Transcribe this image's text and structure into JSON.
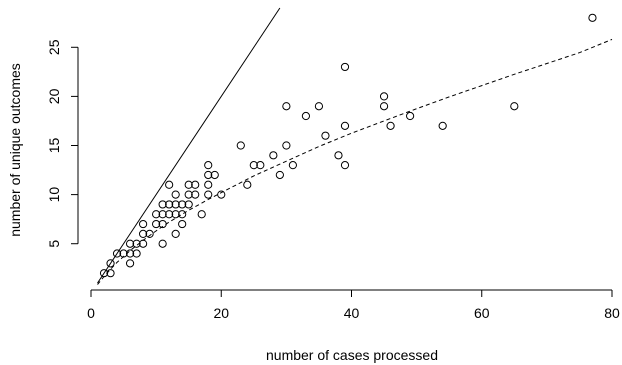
{
  "chart_data": {
    "type": "scatter",
    "title": "",
    "xlabel": "number of cases processed",
    "ylabel": "number of unique outcomes",
    "xlim": [
      0,
      80
    ],
    "ylim": [
      1,
      29
    ],
    "x_ticks": [
      0,
      20,
      40,
      60,
      80
    ],
    "y_ticks": [
      5,
      10,
      15,
      20,
      25
    ],
    "grid": false,
    "legend": "none",
    "colors": {
      "points": "#000000",
      "lines": "#000000",
      "background": "#ffffff"
    },
    "points": [
      [
        2,
        2
      ],
      [
        3,
        2
      ],
      [
        3,
        3
      ],
      [
        4,
        4
      ],
      [
        5,
        4
      ],
      [
        6,
        3
      ],
      [
        6,
        4
      ],
      [
        6,
        5
      ],
      [
        7,
        4
      ],
      [
        7,
        5
      ],
      [
        8,
        5
      ],
      [
        8,
        6
      ],
      [
        8,
        7
      ],
      [
        9,
        6
      ],
      [
        10,
        7
      ],
      [
        10,
        8
      ],
      [
        11,
        5
      ],
      [
        11,
        7
      ],
      [
        11,
        8
      ],
      [
        11,
        9
      ],
      [
        12,
        8
      ],
      [
        12,
        9
      ],
      [
        12,
        11
      ],
      [
        13,
        6
      ],
      [
        13,
        8
      ],
      [
        13,
        9
      ],
      [
        13,
        10
      ],
      [
        14,
        7
      ],
      [
        14,
        8
      ],
      [
        14,
        9
      ],
      [
        15,
        9
      ],
      [
        15,
        10
      ],
      [
        15,
        11
      ],
      [
        16,
        10
      ],
      [
        16,
        11
      ],
      [
        17,
        8
      ],
      [
        18,
        10
      ],
      [
        18,
        11
      ],
      [
        18,
        12
      ],
      [
        18,
        13
      ],
      [
        19,
        12
      ],
      [
        20,
        10
      ],
      [
        23,
        15
      ],
      [
        24,
        11
      ],
      [
        25,
        13
      ],
      [
        26,
        13
      ],
      [
        28,
        14
      ],
      [
        29,
        12
      ],
      [
        30,
        15
      ],
      [
        30,
        19
      ],
      [
        31,
        13
      ],
      [
        33,
        18
      ],
      [
        35,
        19
      ],
      [
        36,
        16
      ],
      [
        38,
        14
      ],
      [
        39,
        13
      ],
      [
        39,
        17
      ],
      [
        39,
        23
      ],
      [
        45,
        19
      ],
      [
        45,
        20
      ],
      [
        46,
        17
      ],
      [
        49,
        18
      ],
      [
        54,
        17
      ],
      [
        65,
        19
      ],
      [
        77,
        28
      ]
    ],
    "identity_line": {
      "style": "solid",
      "from": [
        1,
        1
      ],
      "to": [
        29,
        29
      ]
    },
    "fitted_curve": {
      "style": "dashed",
      "x": [
        1,
        2,
        3,
        4,
        6,
        8,
        10,
        12,
        15,
        18,
        20,
        25,
        30,
        35,
        40,
        45,
        50,
        55,
        60,
        65,
        70,
        75,
        80
      ],
      "y": [
        0.85,
        1.65,
        2.4,
        3.1,
        4.3,
        5.35,
        6.3,
        7.2,
        8.4,
        9.5,
        10.2,
        11.9,
        13.4,
        14.9,
        16.25,
        17.5,
        18.75,
        19.95,
        21.1,
        22.25,
        23.35,
        24.45,
        25.8
      ]
    }
  }
}
